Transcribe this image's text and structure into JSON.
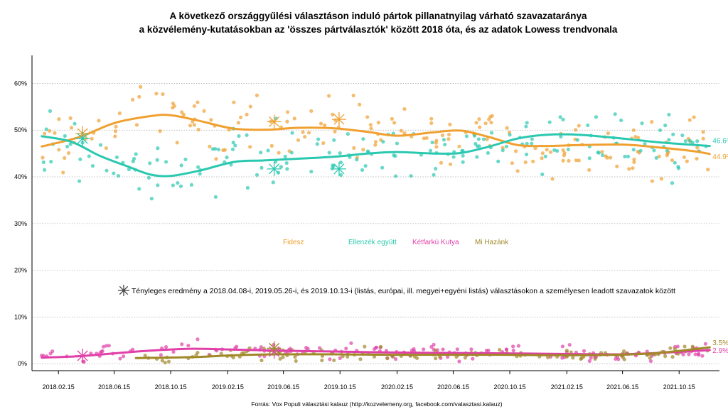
{
  "chart_data": {
    "type": "scatter",
    "title_line1": "A következő országgyűlési választáson induló pártok pillanatnyilag várható szavazataránya",
    "title_line2": "a közvélemény-kutatásokban az 'összes pártválasztók' között 2018 óta, és az adatok Lowess trendvonala",
    "source": "Forrás: Vox Populi választási kalauz (http://kozvelemeny.org, facebook.com/valasztasi.kalauz)",
    "y_ticks": [
      "0%",
      "10%",
      "20%",
      "30%",
      "40%",
      "50%",
      "60%"
    ],
    "y_tick_values": [
      0,
      10,
      20,
      30,
      40,
      50,
      60
    ],
    "ylim": [
      -1.5,
      66
    ],
    "x_ticks": [
      "2018.02.15",
      "2018.06.15",
      "2018.10.15",
      "2019.02.15",
      "2019.06.15",
      "2019.10.15",
      "2020.02.15",
      "2020.06.15",
      "2020.10.15",
      "2021.02.15",
      "2021.06.15",
      "2021.10.15"
    ],
    "xlim": [
      "2017-12-20",
      "2022-01-10"
    ],
    "grid": true,
    "legend_note": "Tényleges eredmény a 2018.04.08-i, 2019.05.26-i, és 2019.10.13-i (listás, európai, ill. megyei+egyéni listás) választásokon a személyesen leadott szavazatok között",
    "series": [
      {
        "name": "Fidesz",
        "color": "#F0A030",
        "trend": [
          [
            "2018-01-10",
            46.5
          ],
          [
            "2018-04-01",
            48.5
          ],
          [
            "2018-06-15",
            51.5
          ],
          [
            "2018-09-01",
            53.0
          ],
          [
            "2018-10-15",
            53.2
          ],
          [
            "2018-12-15",
            52.0
          ],
          [
            "2019-03-01",
            50.3
          ],
          [
            "2019-05-15",
            50.1
          ],
          [
            "2019-07-15",
            50.5
          ],
          [
            "2019-10-01",
            50.4
          ],
          [
            "2019-12-15",
            49.6
          ],
          [
            "2020-02-15",
            48.8
          ],
          [
            "2020-05-01",
            49.5
          ],
          [
            "2020-07-01",
            49.9
          ],
          [
            "2020-09-01",
            48.5
          ],
          [
            "2020-11-01",
            46.8
          ],
          [
            "2021-01-01",
            46.6
          ],
          [
            "2021-03-15",
            46.8
          ],
          [
            "2021-06-15",
            46.9
          ],
          [
            "2021-09-01",
            46.3
          ],
          [
            "2021-11-15",
            45.5
          ],
          [
            "2021-12-20",
            44.9
          ]
        ],
        "last_label": "44.9%",
        "election": [
          [
            "2018-04-08",
            49.3
          ],
          [
            "2019-05-26",
            51.8
          ],
          [
            "2019-10-13",
            52.3
          ]
        ]
      },
      {
        "name": "Ellenzék együtt",
        "color": "#2BC8B0",
        "trend": [
          [
            "2018-01-10",
            48.7
          ],
          [
            "2018-03-15",
            47.5
          ],
          [
            "2018-05-15",
            44.5
          ],
          [
            "2018-07-15",
            42.2
          ],
          [
            "2018-09-01",
            40.5
          ],
          [
            "2018-10-15",
            40.2
          ],
          [
            "2018-12-15",
            41.3
          ],
          [
            "2019-03-01",
            43.2
          ],
          [
            "2019-05-01",
            43.5
          ],
          [
            "2019-07-01",
            43.8
          ],
          [
            "2019-10-01",
            44.3
          ],
          [
            "2019-12-15",
            45.0
          ],
          [
            "2020-02-15",
            45.3
          ],
          [
            "2020-05-01",
            45.0
          ],
          [
            "2020-07-01",
            45.1
          ],
          [
            "2020-09-01",
            46.5
          ],
          [
            "2020-11-01",
            48.2
          ],
          [
            "2021-01-01",
            49.0
          ],
          [
            "2021-03-15",
            49.0
          ],
          [
            "2021-06-15",
            48.2
          ],
          [
            "2021-09-01",
            47.4
          ],
          [
            "2021-12-20",
            46.6
          ]
        ],
        "last_label": "46.6%",
        "election": [
          [
            "2018-04-08",
            48.2
          ],
          [
            "2019-05-26",
            41.7
          ],
          [
            "2019-10-13",
            41.7
          ]
        ]
      },
      {
        "name": "Kétfarkú Kutya",
        "color": "#E040A8",
        "trend": [
          [
            "2018-01-10",
            1.3
          ],
          [
            "2018-04-01",
            1.6
          ],
          [
            "2018-06-15",
            2.2
          ],
          [
            "2018-09-01",
            2.8
          ],
          [
            "2018-12-01",
            3.2
          ],
          [
            "2019-03-01",
            3.0
          ],
          [
            "2019-06-01",
            2.8
          ],
          [
            "2019-10-01",
            2.6
          ],
          [
            "2020-02-01",
            2.4
          ],
          [
            "2020-06-01",
            2.3
          ],
          [
            "2020-10-01",
            2.2
          ],
          [
            "2021-02-01",
            2.1
          ],
          [
            "2021-06-01",
            2.0
          ],
          [
            "2021-09-01",
            2.3
          ],
          [
            "2021-12-20",
            2.9
          ]
        ],
        "last_label": "2.9%",
        "election": [
          [
            "2018-04-08",
            1.7
          ],
          [
            "2019-05-26",
            2.6
          ]
        ]
      },
      {
        "name": "Mi Hazánk",
        "color": "#A08828",
        "trend": [
          [
            "2018-08-01",
            1.2
          ],
          [
            "2018-12-01",
            1.4
          ],
          [
            "2019-03-01",
            1.8
          ],
          [
            "2019-06-01",
            2.0
          ],
          [
            "2019-10-01",
            2.0
          ],
          [
            "2020-02-01",
            1.9
          ],
          [
            "2020-06-01",
            1.9
          ],
          [
            "2020-10-01",
            1.9
          ],
          [
            "2021-02-01",
            1.8
          ],
          [
            "2021-06-01",
            1.9
          ],
          [
            "2021-09-01",
            2.3
          ],
          [
            "2021-12-20",
            3.5
          ]
        ],
        "last_label": "3.5%",
        "election": [
          [
            "2019-05-26",
            3.3
          ]
        ]
      }
    ]
  }
}
